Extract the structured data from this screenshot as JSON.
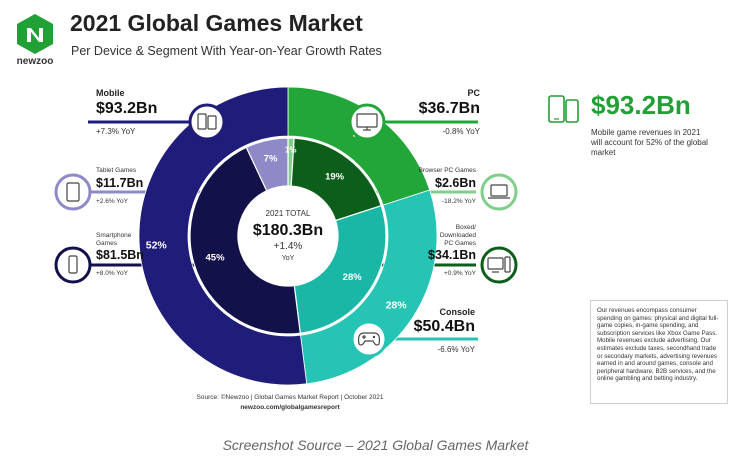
{
  "header": {
    "title": "2021 Global Games Market",
    "subtitle": "Per Device & Segment With Year-on-Year Growth Rates",
    "brand": "newzoo"
  },
  "center": {
    "label": "2021 TOTAL",
    "value": "$180.3Bn",
    "growth": "+1.4%",
    "yoy": "YoY"
  },
  "segments": {
    "mobile": {
      "name": "Mobile",
      "value": "$93.2Bn",
      "yoy": "+7.3% YoY",
      "icon": "mobile-devices-icon"
    },
    "tablet": {
      "name": "Tablet Games",
      "value": "$11.7Bn",
      "yoy": "+2.6% YoY",
      "icon": "tablet-icon"
    },
    "smartphone": {
      "name1": "Smartphone",
      "name2": "Games",
      "value": "$81.5Bn",
      "yoy": "+8.0% YoY",
      "icon": "smartphone-icon"
    },
    "pc": {
      "name": "PC",
      "value": "$36.7Bn",
      "yoy": "-0.8% YoY",
      "icon": "monitor-icon"
    },
    "browser": {
      "name": "Browser PC Games",
      "value": "$2.6Bn",
      "yoy": "-18.2% YoY",
      "icon": "laptop-icon"
    },
    "boxed": {
      "name1": "Boxed/",
      "name2": "Downloaded",
      "name3": "PC Games",
      "value": "$34.1Bn",
      "yoy": "+0.9% YoY",
      "icon": "desktop-pc-icon"
    },
    "console": {
      "name": "Console",
      "value": "$50.4Bn",
      "yoy": "-6.6% YoY",
      "icon": "gamepad-icon"
    }
  },
  "highlight": {
    "value": "$93.2Bn",
    "text": "Mobile game revenues in 2021 will account for 52% of the global market",
    "icon": "phone-and-tablet-icon"
  },
  "note": "Our revenues encompass consumer spending on games: physical and digital full-game copies, in-game spending, and subscription services like Xbox Game Pass. Mobile revenues exclude advertising. Our estimates exclude taxes, secondhand trade or secondary markets, advertising revenues earned in and around games, console and peripheral hardware, B2B services, and the online gambling and betting industry.",
  "source": {
    "line1": "Source: ©Newzoo | Global Games Market Report | October 2021",
    "line2": "newzoo.com/globalgamesreport"
  },
  "caption": "Screenshot Source – 2021 Global  Games Market",
  "colors": {
    "mobile": "#1f1c7a",
    "mobile_inner": "#131149",
    "tablet": "#8e8ac8",
    "pc": "#22a638",
    "browser": "#7dcf8a",
    "boxed": "#0d5e1a",
    "console": "#25c4b4",
    "console_inner": "#1ab7a6",
    "brand_green": "#21a035"
  },
  "chart_data": {
    "type": "pie",
    "outer_ring": {
      "categories": [
        "PC",
        "Console",
        "Mobile"
      ],
      "values": [
        20,
        28,
        52
      ],
      "labels": [
        "20%",
        "28%",
        "52%"
      ]
    },
    "inner_ring": {
      "categories": [
        "Browser PC Games",
        "Boxed/Downloaded PC Games",
        "Console",
        "Smartphone Games",
        "Tablet Games"
      ],
      "values": [
        1,
        19,
        28,
        45,
        7
      ],
      "labels": [
        "1%",
        "19%",
        "28%",
        "45%",
        "7%"
      ]
    },
    "total": "$180.3Bn"
  }
}
